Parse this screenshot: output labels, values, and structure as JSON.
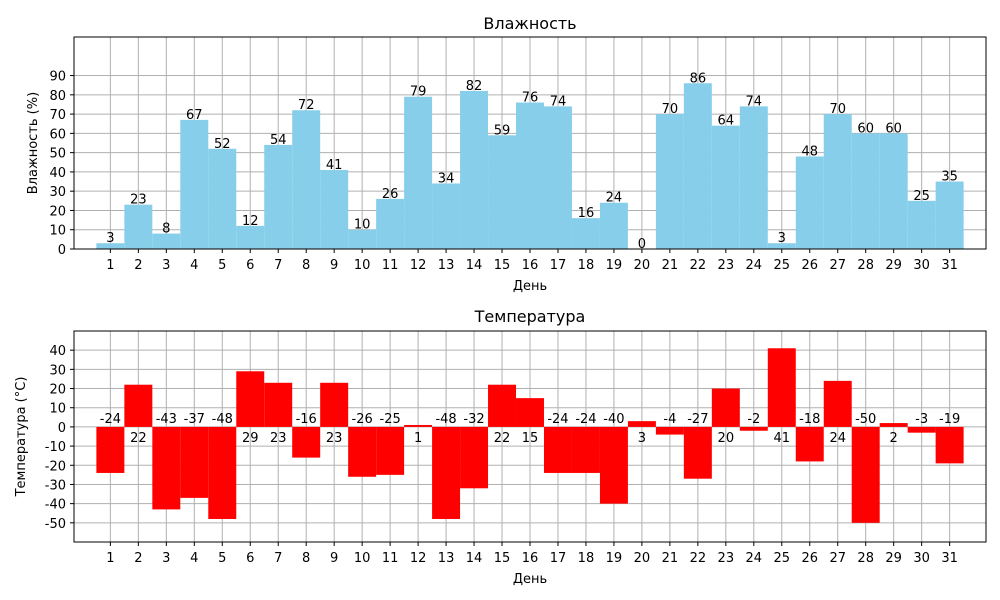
{
  "chart_data": [
    {
      "type": "bar",
      "title": "Влажность",
      "xlabel": "День",
      "ylabel": "Влажность (%)",
      "categories": [
        "1",
        "2",
        "3",
        "4",
        "5",
        "6",
        "7",
        "8",
        "9",
        "10",
        "11",
        "12",
        "13",
        "14",
        "15",
        "16",
        "17",
        "18",
        "19",
        "20",
        "21",
        "22",
        "23",
        "24",
        "25",
        "26",
        "27",
        "28",
        "29",
        "30",
        "31"
      ],
      "values": [
        3,
        23,
        8,
        67,
        52,
        12,
        54,
        72,
        41,
        10,
        26,
        79,
        34,
        82,
        59,
        76,
        74,
        16,
        24,
        0,
        70,
        86,
        64,
        74,
        3,
        48,
        70,
        60,
        60,
        25,
        35
      ],
      "ylim": [
        0,
        110
      ],
      "yticks": [
        0,
        10,
        20,
        30,
        40,
        50,
        60,
        70,
        80,
        90
      ],
      "grid": true,
      "color": "#87CEEB"
    },
    {
      "type": "bar",
      "title": "Температура",
      "xlabel": "День",
      "ylabel": "Температура (°C)",
      "categories": [
        "1",
        "2",
        "3",
        "4",
        "5",
        "6",
        "7",
        "8",
        "9",
        "10",
        "11",
        "12",
        "13",
        "14",
        "15",
        "16",
        "17",
        "18",
        "19",
        "20",
        "21",
        "22",
        "23",
        "24",
        "25",
        "26",
        "27",
        "28",
        "29",
        "30",
        "31"
      ],
      "values": [
        -24,
        22,
        -43,
        -37,
        -48,
        29,
        23,
        -16,
        23,
        -26,
        -25,
        1,
        -48,
        -32,
        22,
        15,
        -24,
        -24,
        -40,
        3,
        -4,
        -27,
        20,
        -2,
        41,
        -18,
        24,
        -50,
        2,
        -3,
        -19
      ],
      "ylim": [
        -60,
        50
      ],
      "yticks": [
        -50,
        -40,
        -30,
        -20,
        -10,
        0,
        10,
        20,
        30,
        40
      ],
      "grid": true,
      "color": "#FF0000"
    }
  ]
}
